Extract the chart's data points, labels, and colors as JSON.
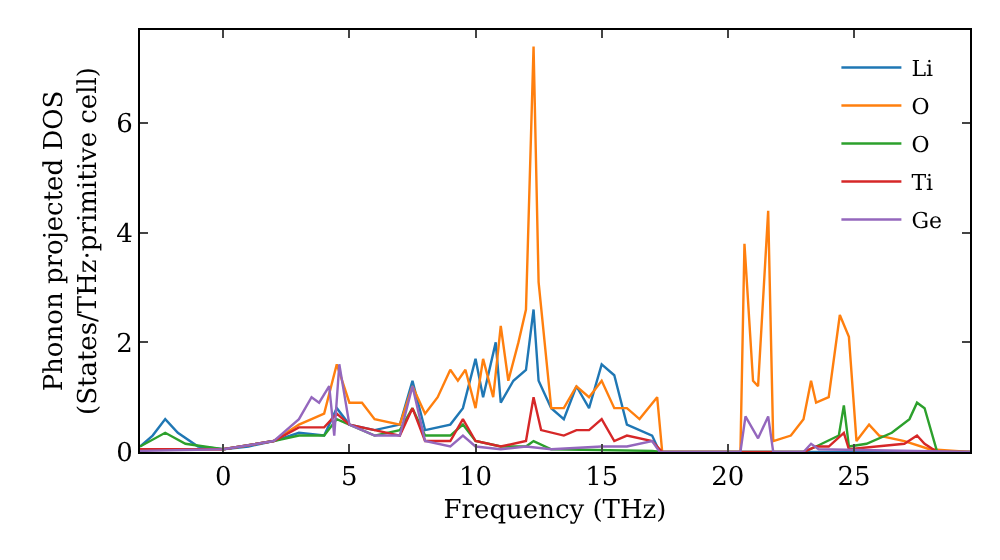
{
  "chart_data": {
    "type": "line",
    "xlabel": "Frequency (THz)",
    "ylabel": "Phonon projected DOS\n(States/THz·primitive cell)",
    "xlim": [
      -3.3,
      29.6
    ],
    "ylim": [
      0,
      7.7
    ],
    "xticks": [
      0,
      5,
      10,
      15,
      20,
      25
    ],
    "yticks": [
      0,
      2,
      4,
      6
    ],
    "grid": false,
    "legend": "top right",
    "marker": "none",
    "line_style": "solid",
    "series": [
      {
        "name": "Li",
        "color": "#1f77b4",
        "x": [
          -3.3,
          -2.8,
          -2.3,
          -1.8,
          -1,
          0,
          1,
          2,
          3,
          4,
          4.5,
          5,
          6,
          7,
          7.5,
          8,
          9,
          9.5,
          10,
          10.3,
          10.8,
          11,
          11.5,
          12,
          12.3,
          12.5,
          13,
          13.5,
          14,
          14.5,
          15,
          15.5,
          16,
          17,
          17.3,
          20.5,
          25,
          29.6
        ],
        "values": [
          0.1,
          0.3,
          0.6,
          0.35,
          0.1,
          0.05,
          0.1,
          0.2,
          0.35,
          0.3,
          0.8,
          0.5,
          0.4,
          0.5,
          1.3,
          0.4,
          0.5,
          0.8,
          1.7,
          1.0,
          2.0,
          0.9,
          1.3,
          1.5,
          2.6,
          1.3,
          0.8,
          0.6,
          1.2,
          0.8,
          1.6,
          1.4,
          0.5,
          0.3,
          0,
          0,
          0,
          0
        ]
      },
      {
        "name": "O",
        "color": "#ff7f0e",
        "x": [
          -3.3,
          0,
          2,
          3,
          3.5,
          4,
          4.5,
          5,
          5.5,
          6,
          7,
          7.5,
          8,
          8.5,
          9,
          9.3,
          9.6,
          10,
          10.3,
          10.7,
          11,
          11.3,
          11.7,
          12,
          12.3,
          12.5,
          13,
          13.5,
          14,
          14.5,
          15,
          15.5,
          16,
          16.5,
          17.2,
          17.4,
          20.5,
          20.66,
          21,
          21.2,
          21.6,
          21.8,
          22.5,
          23,
          23.3,
          23.5,
          24,
          24.44,
          24.8,
          25.1,
          25.6,
          26,
          27,
          28,
          29.6
        ],
        "values": [
          0.05,
          0.05,
          0.2,
          0.5,
          0.6,
          0.7,
          1.6,
          0.9,
          0.9,
          0.6,
          0.5,
          1.2,
          0.7,
          1.0,
          1.5,
          1.3,
          1.5,
          0.8,
          1.7,
          1.0,
          2.3,
          1.3,
          2.0,
          2.6,
          7.4,
          3.1,
          0.8,
          0.8,
          1.2,
          1.0,
          1.3,
          0.8,
          0.8,
          0.6,
          1.0,
          0,
          0,
          3.8,
          1.3,
          1.2,
          4.4,
          0.2,
          0.3,
          0.6,
          1.3,
          0.9,
          1.0,
          2.5,
          2.1,
          0.2,
          0.5,
          0.3,
          0.2,
          0.05,
          0
        ]
      },
      {
        "name": "O",
        "color": "#2ca02c",
        "x": [
          -3.3,
          -2.3,
          -1.5,
          0,
          2,
          3,
          4,
          4.5,
          5,
          6,
          7,
          7.5,
          8,
          9,
          9.5,
          10,
          11,
          12,
          12.3,
          13,
          17,
          17.4,
          23,
          23.5,
          24.4,
          24.6,
          24.8,
          25.5,
          26.5,
          27.2,
          27.5,
          27.8,
          28.3,
          29.6
        ],
        "values": [
          0.1,
          0.35,
          0.15,
          0.05,
          0.2,
          0.3,
          0.3,
          0.6,
          0.5,
          0.3,
          0.4,
          0.8,
          0.3,
          0.3,
          0.5,
          0.2,
          0.1,
          0.1,
          0.2,
          0.05,
          0.02,
          0,
          0,
          0.1,
          0.3,
          0.85,
          0.1,
          0.15,
          0.35,
          0.6,
          0.9,
          0.8,
          0,
          0
        ]
      },
      {
        "name": "Ti",
        "color": "#d62728",
        "x": [
          -3.3,
          0,
          2,
          3,
          4,
          4.5,
          5,
          6,
          7,
          7.5,
          8,
          9,
          9.5,
          10,
          11,
          12,
          12.3,
          12.6,
          13.5,
          14,
          14.5,
          15,
          15.5,
          16,
          17,
          17.4,
          23,
          23.5,
          24,
          24.6,
          24.8,
          27,
          27.5,
          27.8,
          28.3,
          29.6
        ],
        "values": [
          0.05,
          0.05,
          0.2,
          0.45,
          0.45,
          0.7,
          0.5,
          0.4,
          0.3,
          0.8,
          0.2,
          0.2,
          0.6,
          0.2,
          0.1,
          0.2,
          1.0,
          0.4,
          0.3,
          0.4,
          0.4,
          0.6,
          0.2,
          0.3,
          0.2,
          0,
          0,
          0.1,
          0.1,
          0.35,
          0.05,
          0.15,
          0.3,
          0.15,
          0,
          0
        ]
      },
      {
        "name": "Ge",
        "color": "#9467bd",
        "x": [
          -3.3,
          0,
          2,
          3,
          3.5,
          3.8,
          4.2,
          4.4,
          4.6,
          5,
          6,
          7,
          7.5,
          8,
          9,
          9.5,
          10,
          11,
          12,
          13,
          15,
          16,
          17,
          17.3,
          20.5,
          20.7,
          21.2,
          21.6,
          21.8,
          23,
          23.3,
          23.6,
          29.6
        ],
        "values": [
          0.02,
          0.05,
          0.2,
          0.6,
          1.0,
          0.9,
          1.2,
          0.3,
          1.6,
          0.5,
          0.3,
          0.3,
          1.2,
          0.2,
          0.1,
          0.3,
          0.1,
          0.05,
          0.1,
          0.05,
          0.1,
          0.1,
          0.2,
          0,
          0,
          0.65,
          0.25,
          0.65,
          0,
          0,
          0.15,
          0.05,
          0
        ]
      }
    ]
  }
}
